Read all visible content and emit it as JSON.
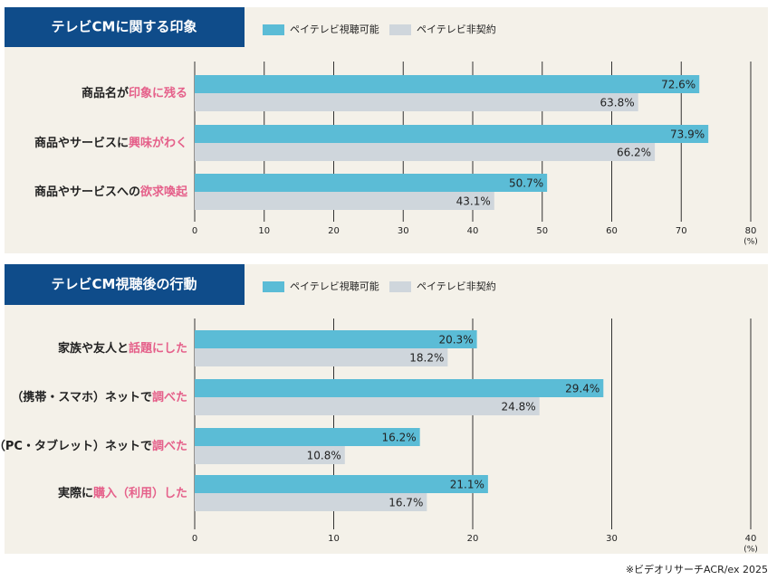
{
  "chart_data": [
    {
      "type": "barh",
      "title": "テレビCMに関する印象",
      "categories": [
        [
          "商品名が",
          "印象に残る"
        ],
        [
          "商品やサービスに",
          "興味がわく"
        ],
        [
          "商品やサービスへの",
          "欲求喚起"
        ]
      ],
      "series": [
        {
          "name": "ペイテレビ視聴可能",
          "color": "#5bbcd6",
          "values": [
            72.6,
            73.9,
            50.7
          ],
          "value_labels": [
            "72.6%",
            "73.9%",
            "50.7%"
          ]
        },
        {
          "name": "ペイテレビ非契約",
          "color": "#cfd6dc",
          "values": [
            63.8,
            66.2,
            43.1
          ],
          "value_labels": [
            "63.8%",
            "66.2%",
            "43.1%"
          ]
        }
      ],
      "xlim": [
        0,
        80
      ],
      "xticks": [
        0,
        10,
        20,
        30,
        40,
        50,
        60,
        70,
        80
      ],
      "xlabel": "(%)",
      "grid": true,
      "highlight_color": "#e5608a"
    },
    {
      "type": "barh",
      "title": "テレビCM視聴後の行動",
      "categories": [
        [
          "家族や友人と",
          "話題にした"
        ],
        [
          "（携帯・スマホ）ネットで",
          "調べた"
        ],
        [
          "（PC・タブレット）ネットで",
          "調べた"
        ],
        [
          "実際に",
          "購入（利用）した"
        ]
      ],
      "series": [
        {
          "name": "ペイテレビ視聴可能",
          "color": "#5bbcd6",
          "values": [
            20.3,
            29.4,
            16.2,
            21.1
          ],
          "value_labels": [
            "20.3%",
            "29.4%",
            "16.2%",
            "21.1%"
          ]
        },
        {
          "name": "ペイテレビ非契約",
          "color": "#cfd6dc",
          "values": [
            18.2,
            24.8,
            10.8,
            16.7
          ],
          "value_labels": [
            "18.2%",
            "24.8%",
            "10.8%",
            "16.7%"
          ]
        }
      ],
      "xlim": [
        0,
        40
      ],
      "xticks": [
        0,
        10,
        20,
        30,
        40
      ],
      "xlabel": "(%)",
      "grid": true,
      "highlight_color": "#e5608a"
    }
  ],
  "footnote": "※ビデオリサーチACR/ex 2025"
}
